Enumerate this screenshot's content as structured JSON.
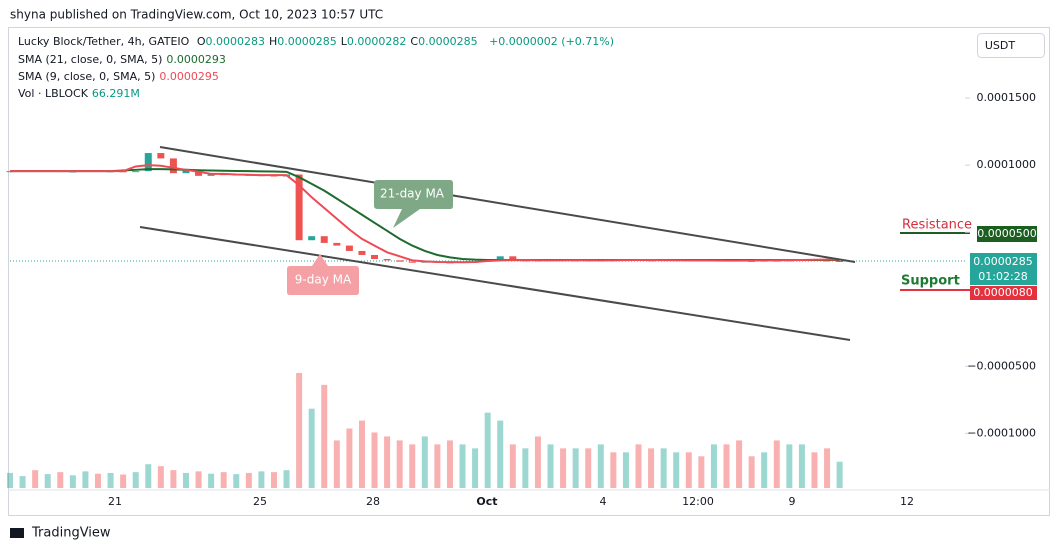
{
  "header": {
    "publisher": "shyna published on TradingView.com, Oct 10, 2023 10:57 UTC",
    "symbol": "Lucky Block/Tether, 4h, GATEIO",
    "ohlc": [
      {
        "label": "O",
        "value": "0.0000283"
      },
      {
        "label": "H",
        "value": "0.0000285"
      },
      {
        "label": "L",
        "value": "0.0000282"
      },
      {
        "label": "C",
        "value": "0.0000285"
      }
    ],
    "change": "+0.0000002 (+0.71%)",
    "indicators": [
      {
        "label": "SMA (21, close, 0, SMA, 5)",
        "value": "0.0000293"
      },
      {
        "label": "SMA (9, close, 0, SMA, 5)",
        "value": "0.0000295"
      },
      {
        "label": "Vol · LBLOCK",
        "value": "66.291M"
      }
    ]
  },
  "currency": "USDT",
  "annotations": {
    "ma21": "21-day MA",
    "ma9": "9-day MA",
    "resistance": "Resistance",
    "support": "Support"
  },
  "price_labels": {
    "resistance": "0.0000500",
    "current": "0.0000285",
    "countdown": "01:02:28",
    "support": "0.0000080"
  },
  "footer": "TradingView",
  "chart_data": {
    "type": "candlestick",
    "ylim": [
      -0.00014,
      0.0002
    ],
    "yticks": [
      {
        "value": 0.00015,
        "label": "0.0001500"
      },
      {
        "value": 0.0001,
        "label": "0.0001000"
      },
      {
        "value": 5e-05,
        "label": "0.0000500"
      },
      {
        "value": -5e-05,
        "label": "−0.0000500"
      },
      {
        "value": -0.0001,
        "label": "−0.0001000"
      }
    ],
    "xticks": [
      "21",
      "25",
      "28",
      "Oct",
      "4",
      "12:00",
      "9",
      "12"
    ],
    "up_color": "#26a69a",
    "down_color": "#ef5350",
    "close": [
      9.55e-05,
      9.58e-05,
      9.52e-05,
      9.56e-05,
      9.5e-05,
      9.53e-05,
      9.57e-05,
      9.51e-05,
      9.54e-05,
      9.52e-05,
      9.55e-05,
      0.000109,
      0.000105,
      9.4e-05,
      9.6e-05,
      9.2e-05,
      9.35e-05,
      9.25e-05,
      9.3e-05,
      9.2e-05,
      9.25e-05,
      9.15e-05,
      9.3e-05,
      4.4e-05,
      4.7e-05,
      4.2e-05,
      4e-05,
      3.6e-05,
      3.3e-05,
      3e-05,
      2.9e-05,
      2.8e-05,
      2.75e-05,
      2.8e-05,
      2.75e-05,
      2.7e-05,
      2.78e-05,
      2.8e-05,
      3e-05,
      3.2e-05,
      2.85e-05,
      2.9e-05,
      2.88e-05,
      2.92e-05,
      2.86e-05,
      2.9e-05,
      2.87e-05,
      2.91e-05,
      2.89e-05,
      2.93e-05,
      2.9e-05,
      2.88e-05,
      2.92e-05,
      2.95e-05,
      2.91e-05,
      2.89e-05,
      2.93e-05,
      2.9e-05,
      2.86e-05,
      2.83e-05,
      2.88e-05,
      2.86e-05,
      2.9e-05,
      2.92e-05,
      2.89e-05,
      2.83e-05,
      2.85e-05
    ],
    "sma21": {
      "color": "#1e6b2e",
      "values": [
        9.55e-05,
        9.55e-05,
        9.55e-05,
        9.55e-05,
        9.55e-05,
        9.55e-05,
        9.55e-05,
        9.55e-05,
        9.55e-05,
        9.6e-05,
        9.65e-05,
        9.7e-05,
        9.7e-05,
        9.68e-05,
        9.65e-05,
        9.62e-05,
        9.6e-05,
        9.58e-05,
        9.56e-05,
        9.55e-05,
        9.53e-05,
        9.52e-05,
        9.5e-05,
        9.1e-05,
        8.6e-05,
        8.1e-05,
        7.5e-05,
        6.9e-05,
        6.3e-05,
        5.7e-05,
        5.1e-05,
        4.5e-05,
        4e-05,
        3.6e-05,
        3.3e-05,
        3.12e-05,
        3e-05,
        2.95e-05,
        2.93e-05,
        2.93e-05,
        2.93e-05,
        2.93e-05,
        2.93e-05,
        2.93e-05,
        2.93e-05,
        2.93e-05,
        2.93e-05,
        2.93e-05,
        2.93e-05,
        2.93e-05,
        2.93e-05,
        2.93e-05,
        2.93e-05,
        2.93e-05,
        2.93e-05,
        2.93e-05,
        2.93e-05,
        2.93e-05,
        2.93e-05,
        2.93e-05,
        2.93e-05,
        2.93e-05,
        2.93e-05,
        2.93e-05,
        2.93e-05,
        2.93e-05,
        2.93e-05
      ]
    },
    "sma9": {
      "color": "#ef4a55",
      "values": [
        9.55e-05,
        9.55e-05,
        9.55e-05,
        9.55e-05,
        9.55e-05,
        9.55e-05,
        9.55e-05,
        9.55e-05,
        9.55e-05,
        9.55e-05,
        9.9e-05,
        0.0001,
        9.95e-05,
        9.8e-05,
        9.65e-05,
        9.5e-05,
        9.35e-05,
        9.35e-05,
        9.3e-05,
        9.28e-05,
        9.25e-05,
        9.25e-05,
        9.25e-05,
        8.5e-05,
        7.6e-05,
        6.8e-05,
        6e-05,
        5.2e-05,
        4.5e-05,
        4e-05,
        3.5e-05,
        3.2e-05,
        2.9e-05,
        2.82e-05,
        2.78e-05,
        2.77e-05,
        2.76e-05,
        2.78e-05,
        2.85e-05,
        2.9e-05,
        2.92e-05,
        2.93e-05,
        2.91e-05,
        2.9e-05,
        2.91e-05,
        2.92e-05,
        2.91e-05,
        2.9e-05,
        2.91e-05,
        2.92e-05,
        2.93e-05,
        2.93e-05,
        2.92e-05,
        2.91e-05,
        2.9e-05,
        2.9e-05,
        2.89e-05,
        2.88e-05,
        2.88e-05,
        2.89e-05,
        2.9e-05,
        2.91e-05,
        2.92e-05,
        2.93e-05,
        2.94e-05,
        2.95e-05,
        2.95e-05
      ]
    },
    "volume": [
      38,
      30,
      45,
      35,
      40,
      32,
      42,
      36,
      38,
      34,
      40,
      60,
      55,
      45,
      38,
      42,
      36,
      40,
      35,
      38,
      42,
      40,
      45,
      290,
      200,
      260,
      120,
      150,
      170,
      140,
      130,
      120,
      110,
      130,
      110,
      120,
      110,
      100,
      190,
      170,
      110,
      100,
      130,
      110,
      100,
      100,
      100,
      110,
      90,
      90,
      110,
      100,
      100,
      90,
      90,
      80,
      110,
      110,
      120,
      80,
      90,
      120,
      110,
      110,
      90,
      100,
      66.291
    ]
  }
}
